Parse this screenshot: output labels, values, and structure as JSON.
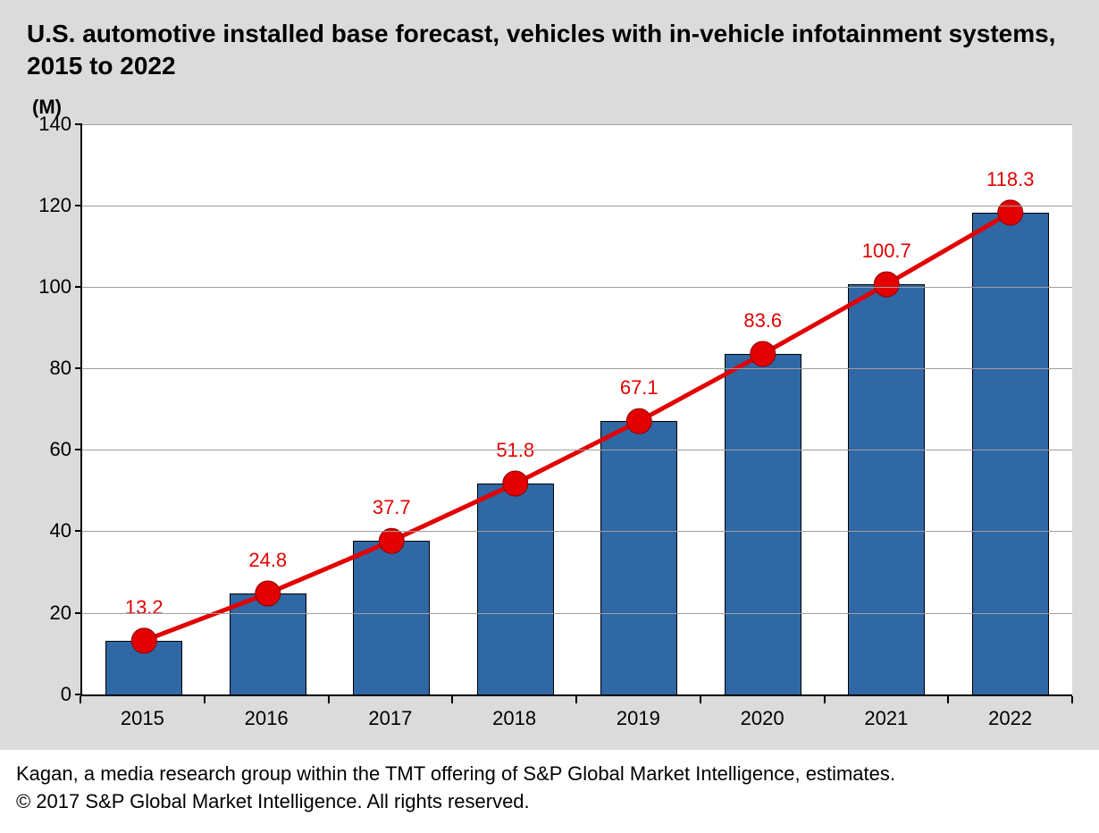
{
  "chart": {
    "type": "bar+line",
    "title": "U.S. automotive installed base forecast, vehicles with in-vehicle infotainment systems, 2015 to 2022",
    "y_unit_label": "(M)",
    "categories": [
      "2015",
      "2016",
      "2017",
      "2018",
      "2019",
      "2020",
      "2021",
      "2022"
    ],
    "values": [
      13.2,
      24.8,
      37.7,
      51.8,
      67.1,
      83.6,
      100.7,
      118.3
    ],
    "data_labels": [
      "13.2",
      "24.8",
      "37.7",
      "51.8",
      "67.1",
      "83.6",
      "100.7",
      "118.3"
    ],
    "ylim": [
      0,
      140
    ],
    "ytick_step": 20,
    "yticks": [
      0,
      20,
      40,
      60,
      80,
      100,
      120,
      140
    ],
    "bar_color": "#3067a5",
    "bar_border_color": "#000000",
    "bar_width_ratio": 0.62,
    "line_color": "#e20000",
    "line_width": 5,
    "marker_color": "#e20000",
    "marker_border_color": "#8d0000",
    "marker_radius": 14,
    "data_label_color": "#e20000",
    "data_label_fontsize": 22,
    "plot_background": "#ffffff",
    "panel_background": "#dbdbdb",
    "grid_color": "#9e9e9e",
    "axis_color": "#000000",
    "axis_label_fontsize": 22,
    "title_fontsize": 28,
    "title_color": "#000000"
  },
  "footer": {
    "line1": "Kagan, a media research group within the TMT offering of S&P Global Market Intelligence, estimates.",
    "line2": "© 2017 S&P Global Market Intelligence. All rights reserved."
  }
}
